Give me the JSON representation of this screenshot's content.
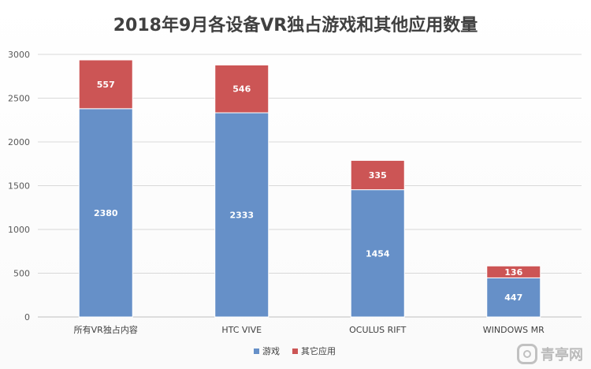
{
  "chart_data": {
    "type": "bar",
    "stacked": true,
    "title": "2018年9月各设备VR独占游戏和其他应用数量",
    "categories": [
      "所有VR独占内容",
      "HTC VIVE",
      "OCULUS RIFT",
      "WINDOWS MR"
    ],
    "series": [
      {
        "name": "游戏",
        "values": [
          2380,
          2333,
          1454,
          447
        ],
        "color": "#6690c8"
      },
      {
        "name": "其它应用",
        "values": [
          557,
          546,
          335,
          136
        ],
        "color": "#cc5555"
      }
    ],
    "ylim": [
      0,
      3000
    ],
    "yticks": [
      0,
      500,
      1000,
      1500,
      2000,
      2500,
      3000
    ],
    "grid": true,
    "legend_position": "bottom"
  },
  "watermark": {
    "text": "青亭网",
    "logo_icon": "qingting-logo-icon"
  }
}
